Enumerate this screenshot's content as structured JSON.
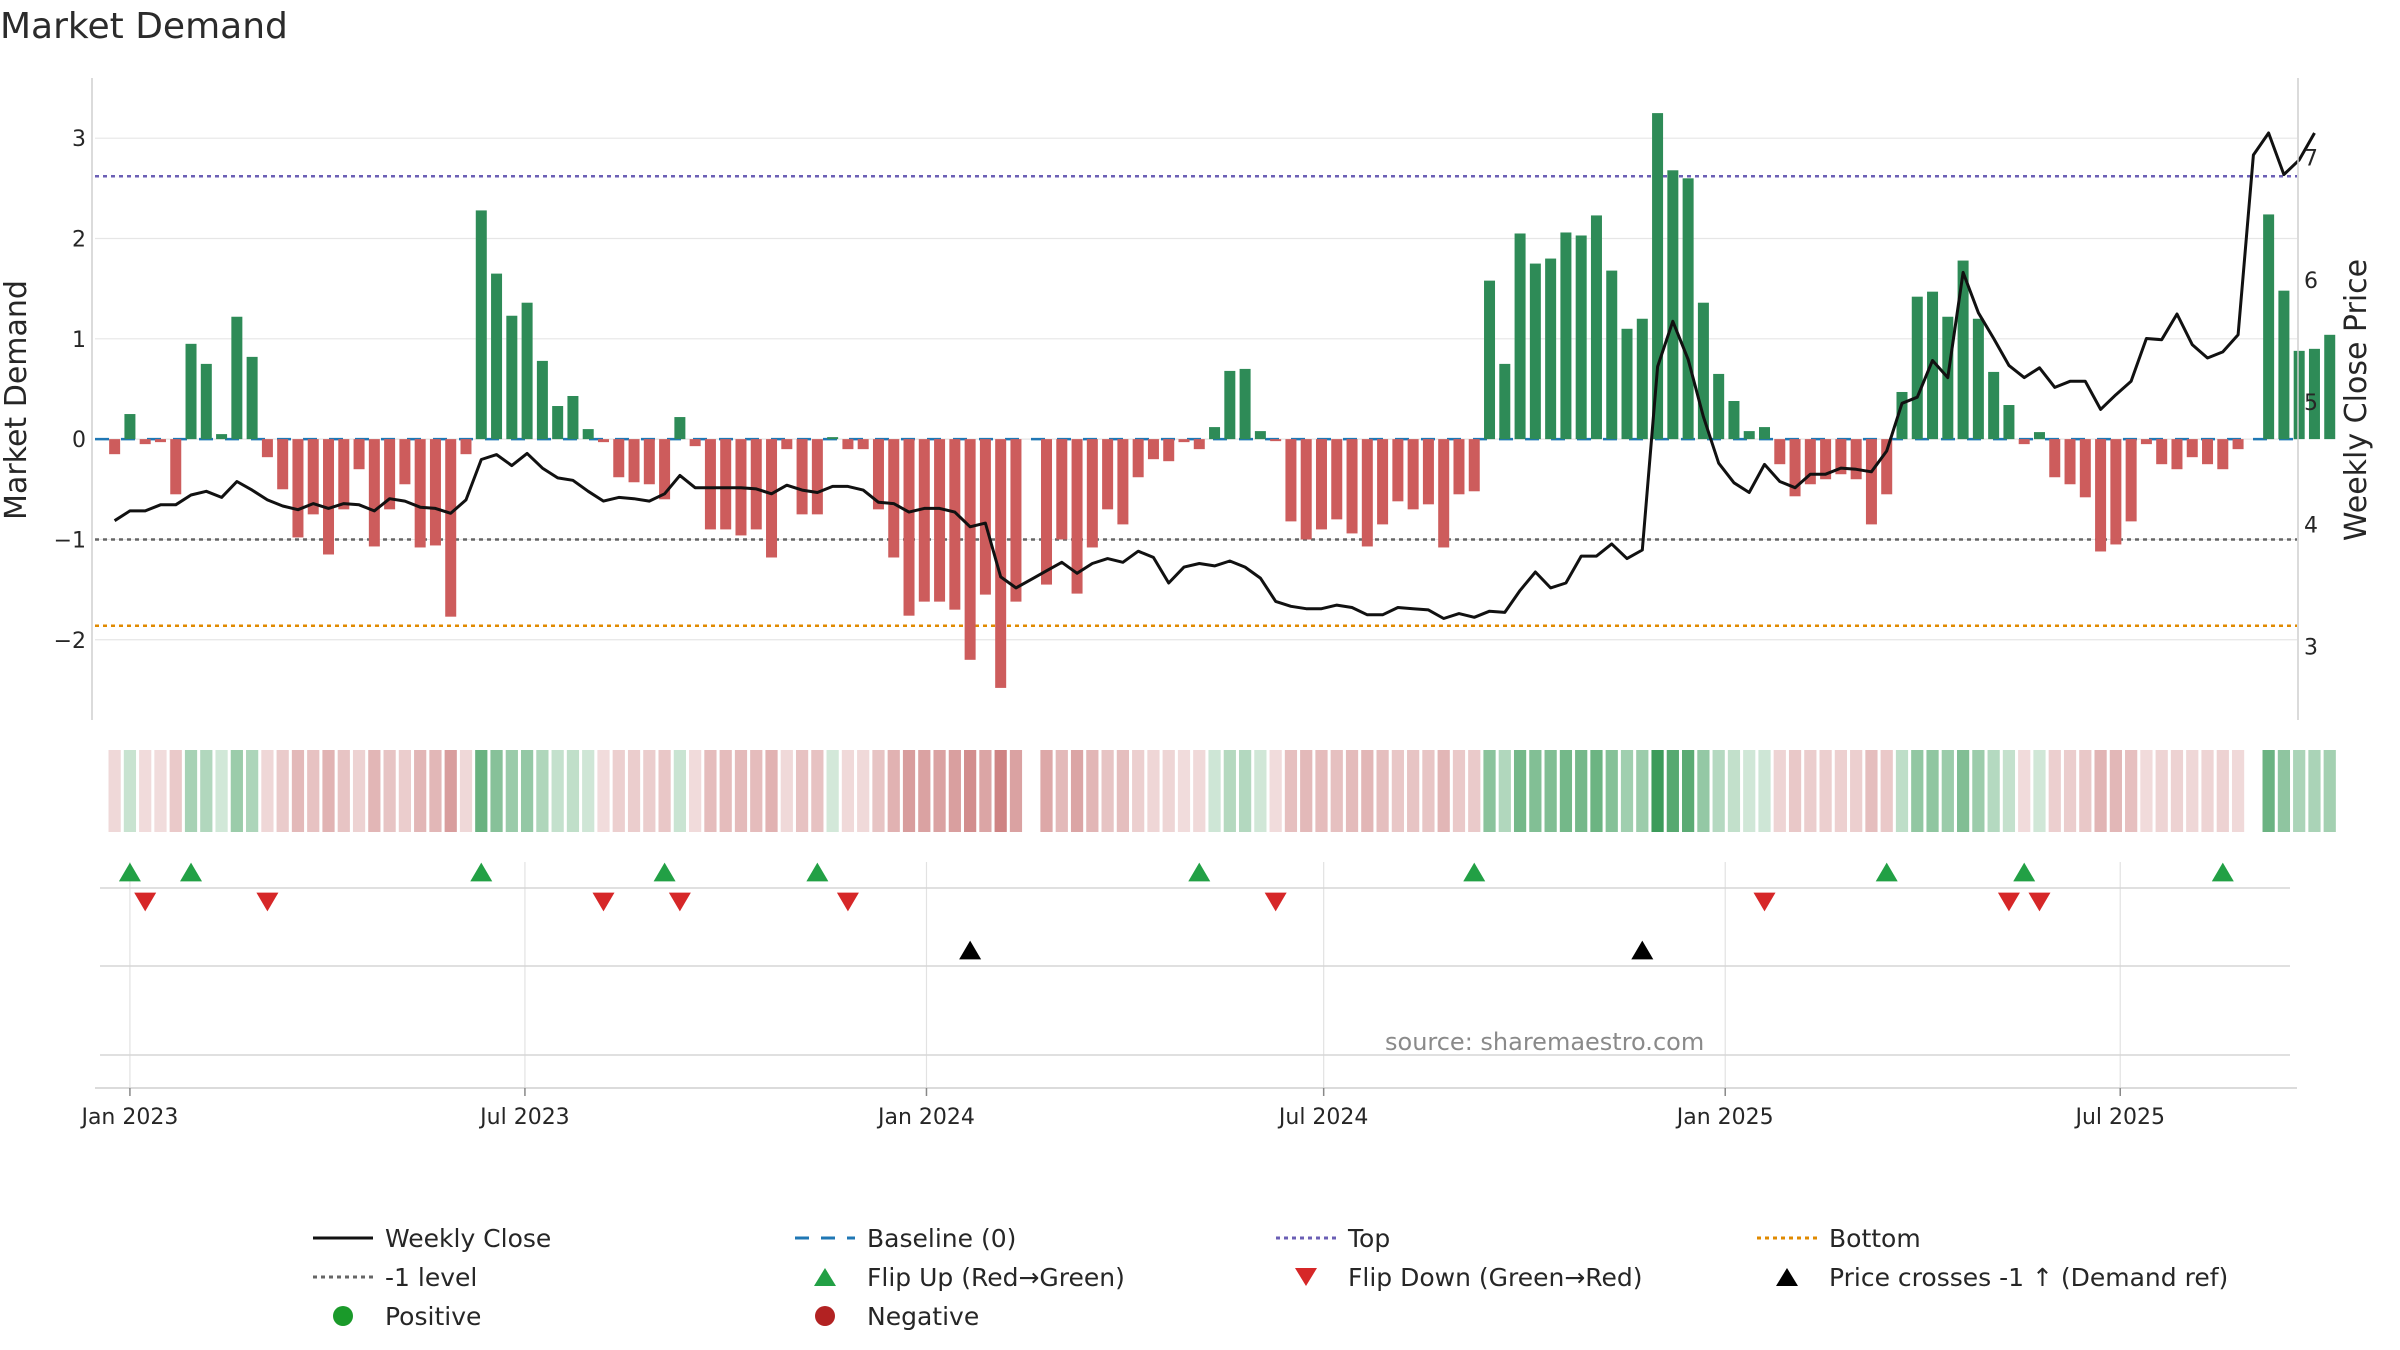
{
  "title": "Market Demand",
  "source": "source: sharemaestro.com",
  "colors": {
    "positive_bar": "#2e8b57",
    "negative_bar": "#cd5c5c",
    "price_line": "#111111",
    "baseline": "#1f77b4",
    "top_line": "#6b5fb5",
    "minus1_line": "#666666",
    "bottom_line": "#e08a00",
    "flip_up": "#22a045",
    "flip_down": "#d62728",
    "cross_marker": "#000000",
    "positive_dot": "#1a9a2a",
    "negative_dot": "#b22222"
  },
  "chart_data": {
    "type": "bar",
    "x_start": "2022-12-25",
    "x_step_days": 7,
    "xlim": [
      "2022-12-16",
      "2025-09-20"
    ],
    "x_ticks": [
      {
        "date": "2023-01-01",
        "label": "Jan 2023"
      },
      {
        "date": "2023-07-01",
        "label": "Jul 2023"
      },
      {
        "date": "2024-01-01",
        "label": "Jan 2024"
      },
      {
        "date": "2024-07-01",
        "label": "Jul 2024"
      },
      {
        "date": "2025-01-01",
        "label": "Jan 2025"
      },
      {
        "date": "2025-07-01",
        "label": "Jul 2025"
      }
    ],
    "y_left": {
      "label": "Market Demand",
      "lim": [
        -2.8,
        3.6
      ],
      "ticks": [
        -2,
        -1,
        0,
        1,
        2,
        3
      ],
      "tick_labels": [
        "−2",
        "−1",
        "0",
        "1",
        "2",
        "3"
      ]
    },
    "y_right": {
      "label": "Weekly Close Price",
      "lim": [
        2.4,
        7.65
      ],
      "ticks": [
        3,
        4,
        5,
        6,
        7
      ],
      "tick_labels": [
        "3",
        "4",
        "5",
        "6",
        "7"
      ]
    },
    "reference_lines": {
      "top": 2.62,
      "minus1": -1.0,
      "bottom": -1.86,
      "baseline": 0
    },
    "series": [
      {
        "name": "Market Demand",
        "values": [
          -0.15,
          0.25,
          -0.05,
          -0.03,
          -0.55,
          0.95,
          0.75,
          0.05,
          1.22,
          0.82,
          -0.18,
          -0.5,
          -0.98,
          -0.75,
          -1.15,
          -0.7,
          -0.3,
          -1.07,
          -0.7,
          -0.45,
          -1.08,
          -1.06,
          -1.77,
          -0.15,
          2.28,
          1.65,
          1.23,
          1.36,
          0.78,
          0.33,
          0.43,
          0.1,
          -0.03,
          -0.38,
          -0.43,
          -0.45,
          -0.6,
          0.22,
          -0.07,
          -0.9,
          -0.9,
          -0.96,
          -0.9,
          -1.18,
          -0.1,
          -0.75,
          -0.75,
          0.02,
          -0.1,
          -0.1,
          -0.7,
          -1.18,
          -1.76,
          -1.62,
          -1.62,
          -1.7,
          -2.2,
          -1.55,
          -2.48,
          -1.62,
          0.0,
          -1.45,
          -1.0,
          -1.54,
          -1.08,
          -0.7,
          -0.85,
          -0.38,
          -0.2,
          -0.22,
          -0.03,
          -0.1,
          0.12,
          0.68,
          0.7,
          0.08,
          -0.02,
          -0.82,
          -1.0,
          -0.9,
          -0.8,
          -0.94,
          -1.07,
          -0.85,
          -0.62,
          -0.7,
          -0.65,
          -1.08,
          -0.55,
          -0.52,
          1.58,
          0.75,
          2.05,
          1.75,
          1.8,
          2.06,
          2.03,
          2.23,
          1.68,
          1.1,
          1.2,
          3.25,
          2.68,
          2.6,
          1.36,
          0.65,
          0.38,
          0.08,
          0.12,
          -0.25,
          -0.57,
          -0.45,
          -0.4,
          -0.35,
          -0.4,
          -0.85,
          -0.55,
          0.47,
          1.42,
          1.47,
          1.22,
          1.78,
          1.2,
          0.67,
          0.34,
          -0.05,
          0.07,
          -0.38,
          -0.45,
          -0.58,
          -1.12,
          -1.05,
          -0.82,
          -0.05,
          -0.25,
          -0.3,
          -0.18,
          -0.25,
          -0.3,
          -0.1,
          0.0,
          2.24,
          1.48,
          0.88,
          0.9,
          1.04
        ]
      },
      {
        "name": "Weekly Close",
        "values": [
          4.03,
          4.11,
          4.11,
          4.16,
          4.16,
          4.24,
          4.27,
          4.22,
          4.35,
          4.28,
          4.2,
          4.15,
          4.12,
          4.17,
          4.13,
          4.17,
          4.16,
          4.11,
          4.21,
          4.19,
          4.14,
          4.13,
          4.09,
          4.2,
          4.53,
          4.57,
          4.48,
          4.58,
          4.46,
          4.38,
          4.36,
          4.27,
          4.19,
          4.22,
          4.21,
          4.19,
          4.25,
          4.4,
          4.3,
          4.3,
          4.3,
          4.3,
          4.29,
          4.25,
          4.32,
          4.28,
          4.26,
          4.31,
          4.31,
          4.28,
          4.18,
          4.17,
          4.1,
          4.13,
          4.13,
          4.1,
          3.98,
          4.01,
          3.57,
          3.48,
          3.55,
          3.62,
          3.69,
          3.6,
          3.68,
          3.72,
          3.69,
          3.78,
          3.73,
          3.52,
          3.65,
          3.68,
          3.66,
          3.7,
          3.65,
          3.56,
          3.37,
          3.33,
          3.31,
          3.31,
          3.34,
          3.32,
          3.26,
          3.26,
          3.32,
          3.31,
          3.3,
          3.23,
          3.27,
          3.24,
          3.29,
          3.28,
          3.46,
          3.61,
          3.48,
          3.52,
          3.74,
          3.74,
          3.84,
          3.72,
          3.79,
          5.29,
          5.66,
          5.35,
          4.88,
          4.5,
          4.34,
          4.26,
          4.49,
          4.35,
          4.3,
          4.41,
          4.41,
          4.46,
          4.45,
          4.43,
          4.6,
          4.99,
          5.04,
          5.34,
          5.2,
          6.06,
          5.73,
          5.52,
          5.3,
          5.2,
          5.28,
          5.12,
          5.17,
          5.17,
          4.94,
          5.06,
          5.17,
          5.52,
          5.51,
          5.72,
          5.47,
          5.36,
          5.41,
          5.55,
          7.02,
          7.2,
          6.86,
          6.98,
          7.2
        ]
      }
    ],
    "flip_up_indices": [
      1,
      5,
      24,
      36,
      46,
      71,
      89,
      116,
      125,
      138
    ],
    "flip_down_indices": [
      2,
      10,
      32,
      37,
      48,
      76,
      108,
      124,
      126
    ],
    "cross_indices": [
      56,
      100
    ]
  },
  "legend": {
    "items": [
      {
        "label": "Weekly Close",
        "symbol": "solid-line",
        "color": "#111111"
      },
      {
        "label": "Baseline (0)",
        "symbol": "dashed-line",
        "color": "#1f77b4"
      },
      {
        "label": "Top",
        "symbol": "dotted-line",
        "color": "#6b5fb5"
      },
      {
        "label": "Bottom",
        "symbol": "dotted-line",
        "color": "#e08a00"
      },
      {
        "label": "-1 level",
        "symbol": "dotted-line",
        "color": "#666666"
      },
      {
        "label": "Flip Up (Red→Green)",
        "symbol": "triangle-up",
        "color": "#22a045"
      },
      {
        "label": "Flip Down (Green→Red)",
        "symbol": "triangle-down",
        "color": "#d62728"
      },
      {
        "label": "Price crosses -1 ↑ (Demand ref)",
        "symbol": "triangle-up",
        "color": "#000000"
      },
      {
        "label": "Positive",
        "symbol": "circle",
        "color": "#1a9a2a"
      },
      {
        "label": "Negative",
        "symbol": "circle",
        "color": "#b22222"
      }
    ]
  }
}
